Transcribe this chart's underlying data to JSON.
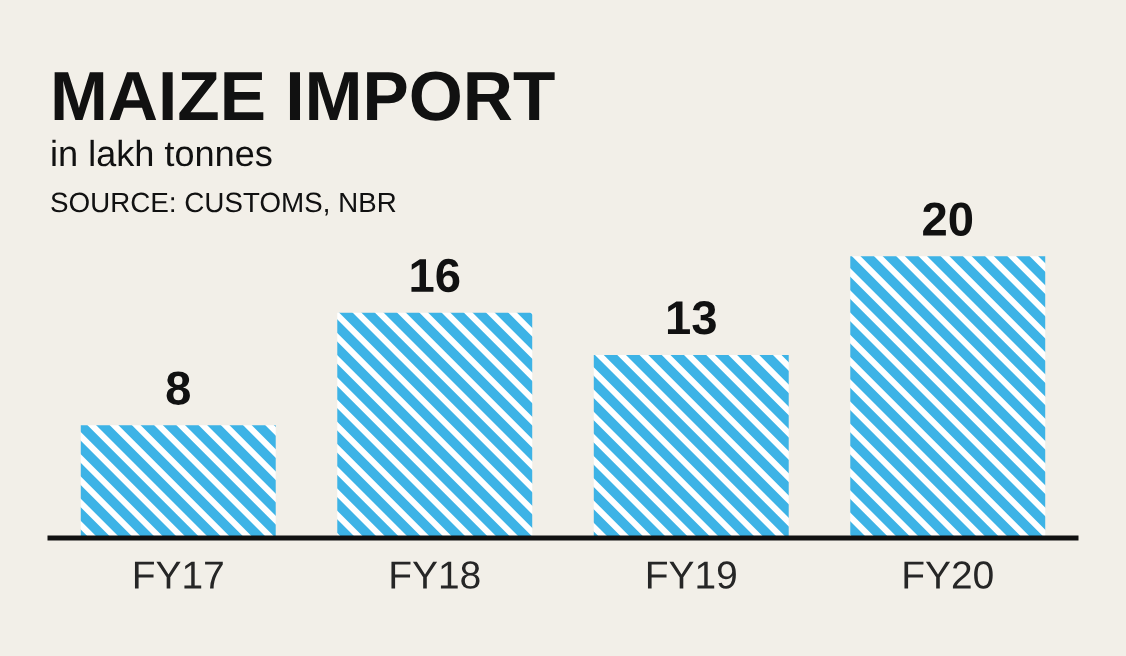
{
  "chart_data": {
    "type": "bar",
    "title": "MAIZE IMPORT",
    "subtitle": "in lakh tonnes",
    "annotations": [
      "SOURCE: CUSTOMS, NBR"
    ],
    "categories": [
      "FY17",
      "FY18",
      "FY19",
      "FY20"
    ],
    "values": [
      8,
      16,
      13,
      20
    ],
    "color": "#3db3e6",
    "data_labels": true,
    "grid": false,
    "legend": false
  }
}
